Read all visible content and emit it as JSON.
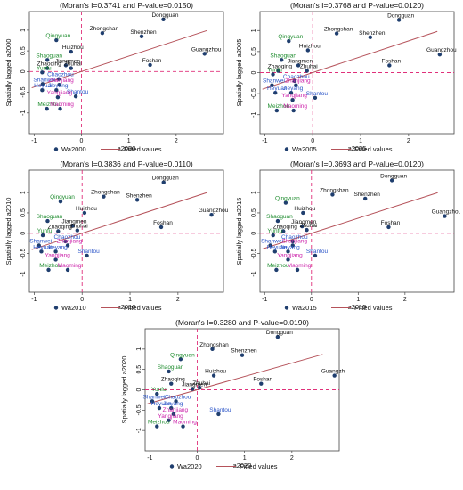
{
  "legend": {
    "fitted_label": "Fitted values"
  },
  "colors": {
    "point": "#1f3e6e",
    "fit": "#b5525a",
    "zero": "#e0307a",
    "black": "#111111",
    "green": "#1e8c2e",
    "blue": "#2b55c8",
    "magenta": "#cc22aa"
  },
  "chart_data": [
    {
      "type": "scatter",
      "title": "(Moran's I=0.3741 and P-value=0.0150)",
      "xlabel": "a2000",
      "ylabel": "Spatially lagged a2000",
      "legend": [
        "Wa2000",
        "Fitted values"
      ],
      "xlim": [
        -1.1,
        3.0
      ],
      "ylim": [
        -1.5,
        1.45
      ],
      "xticks": [
        -1,
        0,
        1,
        2
      ],
      "yticks": [
        -1,
        -0.5,
        0,
        0.5,
        1
      ],
      "fit": {
        "slope": 0.3741,
        "intercept": 0
      },
      "points": [
        {
          "name": "Dongguan",
          "x": 1.73,
          "y": 1.26,
          "color": "black"
        },
        {
          "name": "Zhongshan",
          "x": 0.44,
          "y": 0.93,
          "color": "black"
        },
        {
          "name": "Shenzhen",
          "x": 1.27,
          "y": 0.85,
          "color": "black"
        },
        {
          "name": "Huizhou",
          "x": -0.22,
          "y": 0.48,
          "color": "black"
        },
        {
          "name": "Qingyuan",
          "x": -0.53,
          "y": 0.76,
          "color": "green"
        },
        {
          "name": "Guangzhou",
          "x": 2.6,
          "y": 0.43,
          "color": "black"
        },
        {
          "name": "Shaoguan",
          "x": -0.72,
          "y": 0.28,
          "color": "green"
        },
        {
          "name": "Foshan",
          "x": 1.45,
          "y": 0.16,
          "color": "black"
        },
        {
          "name": "Jiangmen",
          "x": -0.33,
          "y": 0.15,
          "color": "black"
        },
        {
          "name": "Zhaoqing",
          "x": -0.72,
          "y": 0.08,
          "color": "black"
        },
        {
          "name": "Zhuhai",
          "x": -0.22,
          "y": 0.08,
          "color": "black"
        },
        {
          "name": "Yunfu",
          "x": -0.83,
          "y": -0.02,
          "color": "green"
        },
        {
          "name": "Chaozhou",
          "x": -0.48,
          "y": -0.18,
          "color": "blue"
        },
        {
          "name": "Shanwei",
          "x": -0.82,
          "y": -0.3,
          "color": "blue"
        },
        {
          "name": "Zhanjiang",
          "x": -0.47,
          "y": -0.32,
          "color": "magenta"
        },
        {
          "name": "Heyuan",
          "x": -0.83,
          "y": -0.45,
          "color": "blue"
        },
        {
          "name": "Jieyang",
          "x": -0.53,
          "y": -0.45,
          "color": "blue"
        },
        {
          "name": "Shantou",
          "x": -0.12,
          "y": -0.6,
          "color": "blue"
        },
        {
          "name": "Yangjiang",
          "x": -0.5,
          "y": -0.62,
          "color": "magenta"
        },
        {
          "name": "Meizhou",
          "x": -0.73,
          "y": -0.9,
          "color": "green"
        },
        {
          "name": "Maoming",
          "x": -0.45,
          "y": -0.9,
          "color": "magenta"
        }
      ]
    },
    {
      "type": "scatter",
      "title": "(Moran's I=0.3768 and P-value=0.0120)",
      "xlabel": "a2005",
      "ylabel": "Spatially lagged a2005",
      "legend": [
        "Wa2005",
        "Fitted values"
      ],
      "xlim": [
        -1.1,
        2.95
      ],
      "ylim": [
        -1.45,
        1.45
      ],
      "xticks": [
        -1,
        0,
        1,
        2
      ],
      "yticks": [
        -1,
        -0.5,
        0,
        0.5,
        1
      ],
      "fit": {
        "slope": 0.3768,
        "intercept": 0
      },
      "points": [
        {
          "name": "Dongguan",
          "x": 1.8,
          "y": 1.25,
          "color": "black"
        },
        {
          "name": "Zhongshan",
          "x": 0.5,
          "y": 0.93,
          "color": "black"
        },
        {
          "name": "Shenzhen",
          "x": 1.2,
          "y": 0.84,
          "color": "black"
        },
        {
          "name": "Qingyuan",
          "x": -0.5,
          "y": 0.75,
          "color": "green"
        },
        {
          "name": "Huizhou",
          "x": -0.1,
          "y": 0.53,
          "color": "black"
        },
        {
          "name": "Guangzhou",
          "x": 2.65,
          "y": 0.43,
          "color": "black"
        },
        {
          "name": "Shaoguan",
          "x": -0.65,
          "y": 0.3,
          "color": "green"
        },
        {
          "name": "Foshan",
          "x": 1.6,
          "y": 0.17,
          "color": "black"
        },
        {
          "name": "Jiangmen",
          "x": -0.3,
          "y": 0.17,
          "color": "black"
        },
        {
          "name": "Zhaoqing",
          "x": -0.72,
          "y": 0.04,
          "color": "black"
        },
        {
          "name": "Zhuhai",
          "x": -0.12,
          "y": 0.04,
          "color": "black"
        },
        {
          "name": "Yunfu",
          "x": -0.83,
          "y": -0.04,
          "color": "green"
        },
        {
          "name": "Chaozhou",
          "x": -0.38,
          "y": -0.2,
          "color": "blue"
        },
        {
          "name": "Shanwei",
          "x": -0.85,
          "y": -0.3,
          "color": "blue"
        },
        {
          "name": "Zhanjiang",
          "x": -0.35,
          "y": -0.3,
          "color": "magenta"
        },
        {
          "name": "Heyuan",
          "x": -0.78,
          "y": -0.48,
          "color": "blue"
        },
        {
          "name": "Jieyang",
          "x": -0.45,
          "y": -0.48,
          "color": "blue"
        },
        {
          "name": "Shantou",
          "x": 0.05,
          "y": -0.6,
          "color": "blue"
        },
        {
          "name": "Yangjiang",
          "x": -0.42,
          "y": -0.65,
          "color": "magenta"
        },
        {
          "name": "Meizhou",
          "x": -0.75,
          "y": -0.9,
          "color": "green"
        },
        {
          "name": "Maoming",
          "x": -0.4,
          "y": -0.9,
          "color": "magenta"
        }
      ]
    },
    {
      "type": "scatter",
      "title": "(Moran's I=0.3836 and P-value=0.0110)",
      "xlabel": "a2010",
      "ylabel": "Spatially lagged a2010",
      "legend": [
        "Wa2010",
        "Fitted values"
      ],
      "xlim": [
        -1.1,
        2.95
      ],
      "ylim": [
        -1.45,
        1.55
      ],
      "xticks": [
        -1,
        0,
        1,
        2
      ],
      "yticks": [
        -1,
        -0.5,
        0,
        0.5,
        1
      ],
      "fit": {
        "slope": 0.3836,
        "intercept": 0
      },
      "points": [
        {
          "name": "Dongguan",
          "x": 1.7,
          "y": 1.25,
          "color": "black"
        },
        {
          "name": "Zhongshan",
          "x": 0.45,
          "y": 0.9,
          "color": "black"
        },
        {
          "name": "Shenzhen",
          "x": 1.15,
          "y": 0.82,
          "color": "black"
        },
        {
          "name": "Qingyuan",
          "x": -0.45,
          "y": 0.78,
          "color": "green"
        },
        {
          "name": "Huizhou",
          "x": 0.05,
          "y": 0.5,
          "color": "black"
        },
        {
          "name": "Guangzhou",
          "x": 2.7,
          "y": 0.45,
          "color": "black"
        },
        {
          "name": "Shaoguan",
          "x": -0.72,
          "y": 0.3,
          "color": "green"
        },
        {
          "name": "Jiangmen",
          "x": -0.2,
          "y": 0.18,
          "color": "black"
        },
        {
          "name": "Foshan",
          "x": 1.65,
          "y": 0.15,
          "color": "black"
        },
        {
          "name": "Zhaoqing",
          "x": -0.5,
          "y": 0.05,
          "color": "black"
        },
        {
          "name": "Zhuhai",
          "x": -0.1,
          "y": 0.07,
          "color": "black"
        },
        {
          "name": "Yunfu",
          "x": -0.82,
          "y": -0.05,
          "color": "green"
        },
        {
          "name": "Chaozhou",
          "x": -0.35,
          "y": -0.2,
          "color": "blue"
        },
        {
          "name": "Shanwei",
          "x": -0.9,
          "y": -0.3,
          "color": "blue"
        },
        {
          "name": "Zhanjiang",
          "x": -0.3,
          "y": -0.3,
          "color": "magenta"
        },
        {
          "name": "Heyuan",
          "x": -0.85,
          "y": -0.45,
          "color": "blue"
        },
        {
          "name": "Jieyang",
          "x": -0.55,
          "y": -0.45,
          "color": "blue"
        },
        {
          "name": "Shantou",
          "x": 0.1,
          "y": -0.55,
          "color": "blue"
        },
        {
          "name": "Yangjiang",
          "x": -0.55,
          "y": -0.65,
          "color": "magenta"
        },
        {
          "name": "Meizhou",
          "x": -0.7,
          "y": -0.9,
          "color": "green"
        },
        {
          "name": "Maoming",
          "x": -0.3,
          "y": -0.9,
          "color": "magenta"
        }
      ]
    },
    {
      "type": "scatter",
      "title": "(Moran's I=0.3693 and P-value=0.0120)",
      "xlabel": "a2015",
      "ylabel": "Spatially lagged a2015",
      "legend": [
        "Wa2015",
        "Fitted values"
      ],
      "xlim": [
        -1.1,
        3.05
      ],
      "ylim": [
        -1.45,
        1.55
      ],
      "xticks": [
        -1,
        0,
        1,
        2
      ],
      "yticks": [
        -1,
        -0.5,
        0,
        0.5,
        1
      ],
      "fit": {
        "slope": 0.3693,
        "intercept": 0
      },
      "points": [
        {
          "name": "Dongguan",
          "x": 1.72,
          "y": 1.3,
          "color": "black"
        },
        {
          "name": "Zhongshan",
          "x": 0.45,
          "y": 0.95,
          "color": "black"
        },
        {
          "name": "Shenzhen",
          "x": 1.15,
          "y": 0.85,
          "color": "black"
        },
        {
          "name": "Qingyuan",
          "x": -0.55,
          "y": 0.75,
          "color": "green"
        },
        {
          "name": "Guangzhou",
          "x": 2.85,
          "y": 0.42,
          "color": "black"
        },
        {
          "name": "Huizhou",
          "x": -0.18,
          "y": 0.5,
          "color": "black"
        },
        {
          "name": "Shaoguan",
          "x": -0.72,
          "y": 0.3,
          "color": "green"
        },
        {
          "name": "Jiangmen",
          "x": -0.2,
          "y": 0.17,
          "color": "black"
        },
        {
          "name": "Foshan",
          "x": 1.65,
          "y": 0.15,
          "color": "black"
        },
        {
          "name": "Zhaoqing",
          "x": -0.6,
          "y": 0.05,
          "color": "black"
        },
        {
          "name": "Zhuhai",
          "x": -0.1,
          "y": 0.08,
          "color": "black"
        },
        {
          "name": "Yunfu",
          "x": -0.82,
          "y": -0.05,
          "color": "green"
        },
        {
          "name": "Chaozhou",
          "x": -0.4,
          "y": -0.2,
          "color": "blue"
        },
        {
          "name": "Shanwei",
          "x": -0.88,
          "y": -0.3,
          "color": "blue"
        },
        {
          "name": "Zhanjiang",
          "x": -0.4,
          "y": -0.3,
          "color": "magenta"
        },
        {
          "name": "Heyuan",
          "x": -0.78,
          "y": -0.45,
          "color": "blue"
        },
        {
          "name": "Jieyang",
          "x": -0.5,
          "y": -0.45,
          "color": "blue"
        },
        {
          "name": "Shantou",
          "x": 0.08,
          "y": -0.55,
          "color": "blue"
        },
        {
          "name": "Yangjiang",
          "x": -0.5,
          "y": -0.65,
          "color": "magenta"
        },
        {
          "name": "Meizhou",
          "x": -0.75,
          "y": -0.9,
          "color": "green"
        },
        {
          "name": "Maoming",
          "x": -0.3,
          "y": -0.9,
          "color": "magenta"
        }
      ]
    },
    {
      "type": "scatter",
      "title": "(Moran's I=0.3280 and P-value=0.0190)",
      "xlabel": "a2020",
      "ylabel": "Spatially lagged a2020",
      "legend": [
        "Wa2020",
        "Fitted values"
      ],
      "xlim": [
        -1.1,
        3.0
      ],
      "ylim": [
        -1.5,
        1.5
      ],
      "xticks": [
        -1,
        0,
        1,
        2
      ],
      "yticks": [
        -1,
        -0.5,
        0,
        0.5,
        1
      ],
      "fit": {
        "slope": 0.328,
        "intercept": 0
      },
      "points": [
        {
          "name": "Dongguan",
          "x": 1.7,
          "y": 1.3,
          "color": "black"
        },
        {
          "name": "Zhongshan",
          "x": 0.32,
          "y": 1.0,
          "color": "black"
        },
        {
          "name": "Shenzhen",
          "x": 0.95,
          "y": 0.85,
          "color": "black"
        },
        {
          "name": "Qingyuan",
          "x": -0.35,
          "y": 0.75,
          "color": "green"
        },
        {
          "name": "Shaoguan",
          "x": -0.6,
          "y": 0.45,
          "color": "green"
        },
        {
          "name": "Guangzhou",
          "x": 2.9,
          "y": 0.35,
          "color": "black"
        },
        {
          "name": "Huizhou",
          "x": 0.35,
          "y": 0.35,
          "color": "black"
        },
        {
          "name": "Zhaoqing",
          "x": -0.55,
          "y": 0.15,
          "color": "black"
        },
        {
          "name": "Foshan",
          "x": 1.35,
          "y": 0.15,
          "color": "black"
        },
        {
          "name": "Zhuhai",
          "x": 0.05,
          "y": 0.05,
          "color": "black"
        },
        {
          "name": "Jiangmen",
          "x": -0.1,
          "y": 0.02,
          "color": "black"
        },
        {
          "name": "Yunfu",
          "x": -0.85,
          "y": -0.1,
          "color": "green"
        },
        {
          "name": "Chaozhou",
          "x": -0.45,
          "y": -0.28,
          "color": "blue"
        },
        {
          "name": "Shanwei",
          "x": -0.95,
          "y": -0.28,
          "color": "blue"
        },
        {
          "name": "Heyuan",
          "x": -0.8,
          "y": -0.45,
          "color": "blue"
        },
        {
          "name": "Jieyang",
          "x": -0.55,
          "y": -0.45,
          "color": "blue"
        },
        {
          "name": "Shantou",
          "x": 0.45,
          "y": -0.6,
          "color": "blue"
        },
        {
          "name": "Zhanjiang",
          "x": -0.5,
          "y": -0.6,
          "color": "magenta"
        },
        {
          "name": "Yangjiang",
          "x": -0.6,
          "y": -0.75,
          "color": "magenta"
        },
        {
          "name": "Meizhou",
          "x": -0.85,
          "y": -0.9,
          "color": "green"
        },
        {
          "name": "Maoming",
          "x": -0.3,
          "y": -0.9,
          "color": "magenta"
        }
      ]
    }
  ]
}
